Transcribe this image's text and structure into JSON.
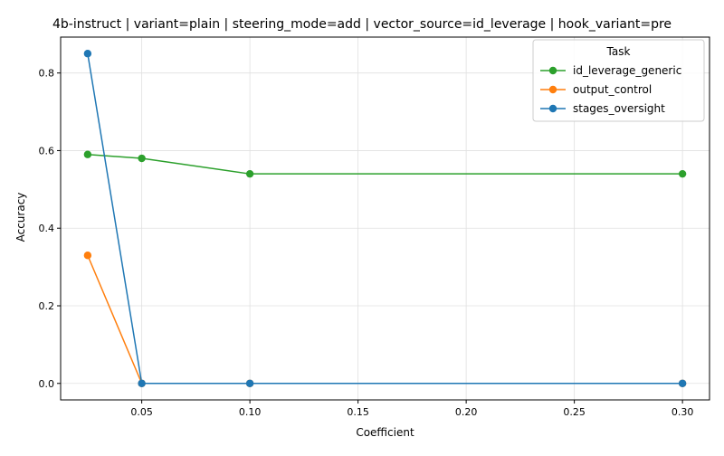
{
  "chart_data": {
    "type": "line",
    "title": "4b-instruct | variant=plain | steering_mode=add | vector_source=id_leverage | hook_variant=pre",
    "xlabel": "Coefficient",
    "ylabel": "Accuracy",
    "xlim": [
      0.0125,
      0.3125
    ],
    "ylim": [
      -0.0425,
      0.8925
    ],
    "x_ticks": [
      0.05,
      0.1,
      0.15,
      0.2,
      0.25,
      0.3
    ],
    "x_tick_labels": [
      "0.05",
      "0.10",
      "0.15",
      "0.20",
      "0.25",
      "0.30"
    ],
    "y_ticks": [
      0.0,
      0.2,
      0.4,
      0.6,
      0.8
    ],
    "y_tick_labels": [
      "0.0",
      "0.2",
      "0.4",
      "0.6",
      "0.8"
    ],
    "grid": true,
    "legend": {
      "title": "Task",
      "placement": "top-right"
    },
    "series": [
      {
        "name": "id_leverage_generic",
        "color": "#2ca02c",
        "x": [
          0.025,
          0.05,
          0.1,
          0.3
        ],
        "y": [
          0.59,
          0.58,
          0.54,
          0.54
        ]
      },
      {
        "name": "output_control",
        "color": "#ff7f0e",
        "x": [
          0.025,
          0.05,
          0.1,
          0.3
        ],
        "y": [
          0.33,
          0.0,
          0.0,
          0.0
        ]
      },
      {
        "name": "stages_oversight",
        "color": "#1f77b4",
        "x": [
          0.025,
          0.05,
          0.1,
          0.3
        ],
        "y": [
          0.85,
          0.0,
          0.0,
          0.0
        ]
      }
    ]
  }
}
